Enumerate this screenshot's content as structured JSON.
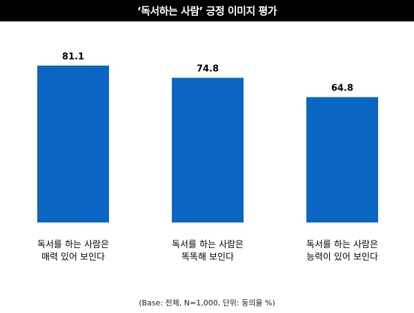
{
  "chart_data": {
    "type": "bar",
    "title": "‘독서하는 사람’ 긍정 이미지 평가",
    "categories": [
      [
        "독서를 하는 사람은",
        "매력 있어 보인다"
      ],
      [
        "독서를 하는 사람은",
        "똑똑해 보인다"
      ],
      [
        "독서를 하는 사람은",
        "능력이 있어 보인다"
      ]
    ],
    "values": [
      81.1,
      74.8,
      64.8
    ],
    "value_labels": [
      "81.1",
      "74.8",
      "64.8"
    ],
    "ylim": [
      0,
      100
    ],
    "bar_color": "#0a66c2",
    "grid": false,
    "legend": "none",
    "footnote": "(Base: 전체, N=1,000, 단위: 동의율 %)"
  }
}
